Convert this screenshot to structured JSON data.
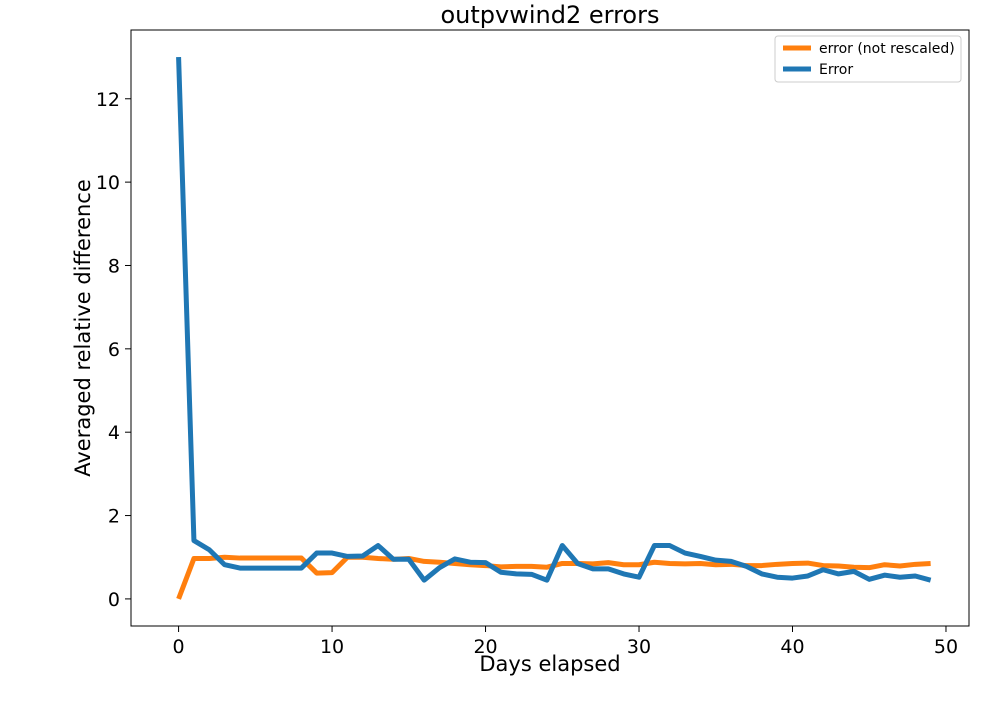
{
  "chart_data": {
    "type": "line",
    "title": "outpvwind2 errors",
    "xlabel": "Days elapsed",
    "ylabel": "Averaged relative difference",
    "xlim": [
      -3.1,
      51.5
    ],
    "ylim": [
      -0.65,
      13.65
    ],
    "xticks": [
      0,
      10,
      20,
      30,
      40,
      50
    ],
    "yticks": [
      0,
      2,
      4,
      6,
      8,
      10,
      12
    ],
    "grid": false,
    "legend_position": "top-right",
    "x": [
      0,
      1,
      2,
      3,
      4,
      5,
      6,
      7,
      8,
      9,
      10,
      11,
      12,
      13,
      14,
      15,
      16,
      17,
      18,
      19,
      20,
      21,
      22,
      23,
      24,
      25,
      26,
      27,
      28,
      29,
      30,
      31,
      32,
      33,
      34,
      35,
      36,
      37,
      38,
      39,
      40,
      41,
      42,
      43,
      44,
      45,
      46,
      47,
      48,
      49
    ],
    "series": [
      {
        "name": "error (not rescaled)",
        "color": "#ff7f0e",
        "values": [
          0.0,
          0.97,
          0.97,
          1.0,
          0.98,
          0.98,
          0.98,
          0.98,
          0.98,
          0.62,
          0.63,
          1.0,
          1.0,
          0.97,
          0.95,
          0.97,
          0.9,
          0.88,
          0.85,
          0.82,
          0.8,
          0.77,
          0.78,
          0.78,
          0.76,
          0.85,
          0.85,
          0.84,
          0.87,
          0.82,
          0.82,
          0.88,
          0.85,
          0.84,
          0.85,
          0.82,
          0.83,
          0.8,
          0.8,
          0.83,
          0.85,
          0.86,
          0.8,
          0.79,
          0.76,
          0.75,
          0.82,
          0.79,
          0.83,
          0.85
        ]
      },
      {
        "name": "Error",
        "color": "#1f77b4",
        "values": [
          13.0,
          1.4,
          1.18,
          0.82,
          0.74,
          0.74,
          0.74,
          0.74,
          0.74,
          1.1,
          1.1,
          1.02,
          1.03,
          1.28,
          0.95,
          0.95,
          0.45,
          0.75,
          0.96,
          0.88,
          0.87,
          0.64,
          0.6,
          0.59,
          0.45,
          1.28,
          0.85,
          0.72,
          0.72,
          0.6,
          0.52,
          1.28,
          1.28,
          1.1,
          1.02,
          0.93,
          0.9,
          0.78,
          0.6,
          0.52,
          0.5,
          0.55,
          0.7,
          0.6,
          0.66,
          0.47,
          0.57,
          0.52,
          0.55,
          0.45
        ]
      }
    ]
  }
}
